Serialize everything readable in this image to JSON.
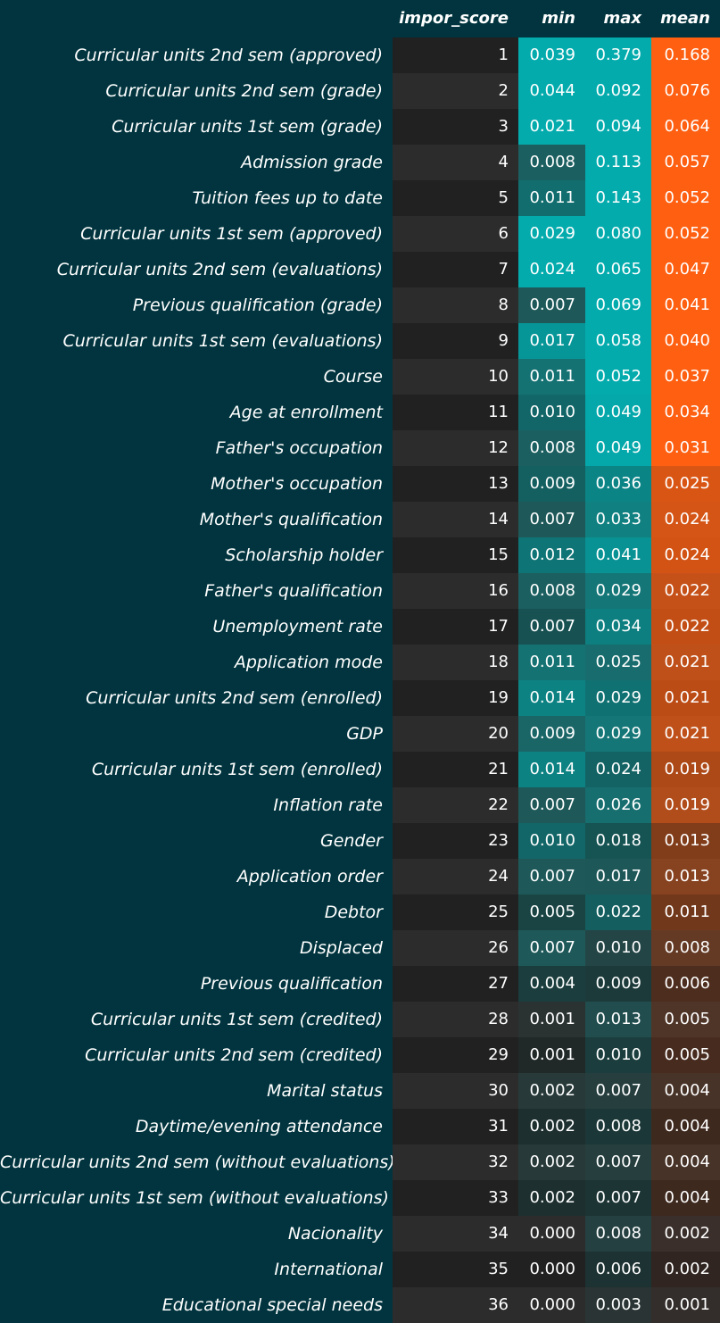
{
  "chart_data": {
    "type": "table",
    "columns": [
      "impor_score",
      "min",
      "max",
      "mean"
    ],
    "rows": [
      {
        "feature": "Curricular units 2nd sem (approved)",
        "impor_score": "1",
        "min": "0.039",
        "max": "0.379",
        "mean": "0.168"
      },
      {
        "feature": "Curricular units 2nd sem (grade)",
        "impor_score": "2",
        "min": "0.044",
        "max": "0.092",
        "mean": "0.076"
      },
      {
        "feature": "Curricular units 1st sem (grade)",
        "impor_score": "3",
        "min": "0.021",
        "max": "0.094",
        "mean": "0.064"
      },
      {
        "feature": "Admission grade",
        "impor_score": "4",
        "min": "0.008",
        "max": "0.113",
        "mean": "0.057"
      },
      {
        "feature": "Tuition fees up to date",
        "impor_score": "5",
        "min": "0.011",
        "max": "0.143",
        "mean": "0.052"
      },
      {
        "feature": "Curricular units 1st sem (approved)",
        "impor_score": "6",
        "min": "0.029",
        "max": "0.080",
        "mean": "0.052"
      },
      {
        "feature": "Curricular units 2nd sem (evaluations)",
        "impor_score": "7",
        "min": "0.024",
        "max": "0.065",
        "mean": "0.047"
      },
      {
        "feature": "Previous qualification (grade)",
        "impor_score": "8",
        "min": "0.007",
        "max": "0.069",
        "mean": "0.041"
      },
      {
        "feature": "Curricular units 1st sem (evaluations)",
        "impor_score": "9",
        "min": "0.017",
        "max": "0.058",
        "mean": "0.040"
      },
      {
        "feature": "Course",
        "impor_score": "10",
        "min": "0.011",
        "max": "0.052",
        "mean": "0.037"
      },
      {
        "feature": "Age at enrollment",
        "impor_score": "11",
        "min": "0.010",
        "max": "0.049",
        "mean": "0.034"
      },
      {
        "feature": "Father's occupation",
        "impor_score": "12",
        "min": "0.008",
        "max": "0.049",
        "mean": "0.031"
      },
      {
        "feature": "Mother's occupation",
        "impor_score": "13",
        "min": "0.009",
        "max": "0.036",
        "mean": "0.025"
      },
      {
        "feature": "Mother's qualification",
        "impor_score": "14",
        "min": "0.007",
        "max": "0.033",
        "mean": "0.024"
      },
      {
        "feature": "Scholarship holder",
        "impor_score": "15",
        "min": "0.012",
        "max": "0.041",
        "mean": "0.024"
      },
      {
        "feature": "Father's qualification",
        "impor_score": "16",
        "min": "0.008",
        "max": "0.029",
        "mean": "0.022"
      },
      {
        "feature": "Unemployment rate",
        "impor_score": "17",
        "min": "0.007",
        "max": "0.034",
        "mean": "0.022"
      },
      {
        "feature": "Application mode",
        "impor_score": "18",
        "min": "0.011",
        "max": "0.025",
        "mean": "0.021"
      },
      {
        "feature": "Curricular units 2nd sem (enrolled)",
        "impor_score": "19",
        "min": "0.014",
        "max": "0.029",
        "mean": "0.021"
      },
      {
        "feature": "GDP",
        "impor_score": "20",
        "min": "0.009",
        "max": "0.029",
        "mean": "0.021"
      },
      {
        "feature": "Curricular units 1st sem (enrolled)",
        "impor_score": "21",
        "min": "0.014",
        "max": "0.024",
        "mean": "0.019"
      },
      {
        "feature": "Inflation rate",
        "impor_score": "22",
        "min": "0.007",
        "max": "0.026",
        "mean": "0.019"
      },
      {
        "feature": "Gender",
        "impor_score": "23",
        "min": "0.010",
        "max": "0.018",
        "mean": "0.013"
      },
      {
        "feature": "Application order",
        "impor_score": "24",
        "min": "0.007",
        "max": "0.017",
        "mean": "0.013"
      },
      {
        "feature": "Debtor",
        "impor_score": "25",
        "min": "0.005",
        "max": "0.022",
        "mean": "0.011"
      },
      {
        "feature": "Displaced",
        "impor_score": "26",
        "min": "0.007",
        "max": "0.010",
        "mean": "0.008"
      },
      {
        "feature": "Previous qualification",
        "impor_score": "27",
        "min": "0.004",
        "max": "0.009",
        "mean": "0.006"
      },
      {
        "feature": "Curricular units 1st sem (credited)",
        "impor_score": "28",
        "min": "0.001",
        "max": "0.013",
        "mean": "0.005"
      },
      {
        "feature": "Curricular units 2nd sem (credited)",
        "impor_score": "29",
        "min": "0.001",
        "max": "0.010",
        "mean": "0.005"
      },
      {
        "feature": "Marital status",
        "impor_score": "30",
        "min": "0.002",
        "max": "0.007",
        "mean": "0.004"
      },
      {
        "feature": "Daytime/evening attendance",
        "impor_score": "31",
        "min": "0.002",
        "max": "0.008",
        "mean": "0.004"
      },
      {
        "feature": "Curricular units 2nd sem (without evaluations)",
        "impor_score": "32",
        "min": "0.002",
        "max": "0.007",
        "mean": "0.004"
      },
      {
        "feature": "Curricular units 1st sem (without evaluations)",
        "impor_score": "33",
        "min": "0.002",
        "max": "0.007",
        "mean": "0.004"
      },
      {
        "feature": "Nacionality",
        "impor_score": "34",
        "min": "0.000",
        "max": "0.008",
        "mean": "0.002"
      },
      {
        "feature": "International",
        "impor_score": "35",
        "min": "0.000",
        "max": "0.006",
        "mean": "0.002"
      },
      {
        "feature": "Educational special needs",
        "impor_score": "36",
        "min": "0.000",
        "max": "0.003",
        "mean": "0.001"
      }
    ],
    "colors": {
      "background": "#01343e",
      "teal_full": "#03abad",
      "orange_full": "#fe5f11",
      "cell_dark": "#212121",
      "cell_dark_alt": "#2c2c2c"
    }
  }
}
